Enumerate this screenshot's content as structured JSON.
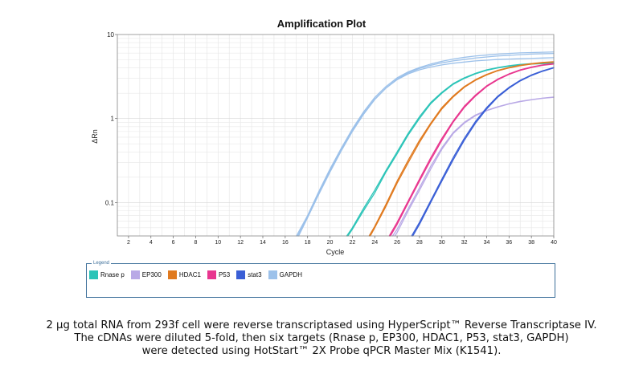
{
  "chart_data": {
    "type": "line",
    "title": "Amplification Plot",
    "xlabel": "Cycle",
    "ylabel": "ΔRn",
    "y_scale": "log",
    "xlim": [
      1,
      40
    ],
    "ylim": [
      0.04,
      10
    ],
    "x_ticks": [
      2,
      4,
      6,
      8,
      10,
      12,
      14,
      16,
      18,
      20,
      22,
      24,
      26,
      28,
      30,
      32,
      34,
      36,
      38,
      40
    ],
    "y_ticks": [
      {
        "value": 0.1,
        "label": "0.1"
      },
      {
        "value": 1,
        "label": "1"
      },
      {
        "value": 10,
        "label": "10"
      }
    ],
    "grid": true,
    "legend_caption": "Legend",
    "legend_position": "bottom",
    "series": [
      {
        "name": "Rnase p",
        "color": "#2cc4b8",
        "curves": [
          {
            "x": [
              21.6,
              22,
              23,
              24,
              25,
              26,
              27,
              28,
              29,
              30,
              31,
              32,
              33,
              34,
              35,
              36,
              37,
              38,
              39,
              40
            ],
            "y": [
              0.04,
              0.048,
              0.08,
              0.13,
              0.23,
              0.38,
              0.64,
              1.0,
              1.5,
              2.0,
              2.55,
              3.0,
              3.4,
              3.75,
              4.0,
              4.2,
              4.35,
              4.45,
              4.5,
              4.55
            ]
          },
          {
            "x": [
              21.5,
              22,
              23,
              24,
              25,
              26,
              27,
              28,
              29,
              30,
              31,
              32,
              33,
              34,
              35,
              36,
              37,
              38,
              39,
              40
            ],
            "y": [
              0.04,
              0.05,
              0.085,
              0.14,
              0.24,
              0.4,
              0.67,
              1.05,
              1.55,
              2.05,
              2.6,
              3.05,
              3.45,
              3.8,
              4.05,
              4.25,
              4.4,
              4.5,
              4.55,
              4.6
            ]
          }
        ]
      },
      {
        "name": "EP300",
        "color": "#b9a9e6",
        "curves": [
          {
            "x": [
              25.6,
              26,
              27,
              28,
              29,
              30,
              31,
              32,
              33,
              34,
              35,
              36,
              37,
              38,
              39,
              40
            ],
            "y": [
              0.04,
              0.048,
              0.085,
              0.15,
              0.27,
              0.45,
              0.68,
              0.9,
              1.1,
              1.25,
              1.38,
              1.5,
              1.6,
              1.68,
              1.75,
              1.8
            ]
          },
          {
            "x": [
              25.8,
              26,
              27,
              28,
              29,
              30,
              31,
              32,
              33,
              34,
              35,
              36,
              37,
              38,
              39,
              40
            ],
            "y": [
              0.04,
              0.044,
              0.08,
              0.14,
              0.25,
              0.43,
              0.66,
              0.88,
              1.08,
              1.24,
              1.37,
              1.49,
              1.59,
              1.67,
              1.74,
              1.79
            ]
          }
        ]
      },
      {
        "name": "HDAC1",
        "color": "#e07a1f",
        "curves": [
          {
            "x": [
              23.6,
              24,
              25,
              26,
              27,
              28,
              29,
              30,
              31,
              32,
              33,
              34,
              35,
              36,
              37,
              38,
              39,
              40
            ],
            "y": [
              0.04,
              0.05,
              0.09,
              0.17,
              0.3,
              0.52,
              0.85,
              1.3,
              1.8,
              2.35,
              2.85,
              3.3,
              3.7,
              4.0,
              4.25,
              4.45,
              4.6,
              4.7
            ]
          },
          {
            "x": [
              23.5,
              24,
              25,
              26,
              27,
              28,
              29,
              30,
              31,
              32,
              33,
              34,
              35,
              36,
              37,
              38,
              39,
              40
            ],
            "y": [
              0.04,
              0.052,
              0.095,
              0.18,
              0.32,
              0.55,
              0.88,
              1.35,
              1.85,
              2.4,
              2.9,
              3.35,
              3.75,
              4.05,
              4.3,
              4.5,
              4.65,
              4.75
            ]
          }
        ]
      },
      {
        "name": "P53",
        "color": "#e8368f",
        "curves": [
          {
            "x": [
              25.4,
              26,
              27,
              28,
              29,
              30,
              31,
              32,
              33,
              34,
              35,
              36,
              37,
              38,
              39,
              40
            ],
            "y": [
              0.04,
              0.055,
              0.1,
              0.18,
              0.32,
              0.55,
              0.9,
              1.35,
              1.85,
              2.4,
              2.9,
              3.35,
              3.75,
              4.05,
              4.3,
              4.45
            ]
          },
          {
            "x": [
              25.3,
              26,
              27,
              28,
              29,
              30,
              31,
              32,
              33,
              34,
              35,
              36,
              37,
              38,
              39,
              40
            ],
            "y": [
              0.04,
              0.058,
              0.105,
              0.19,
              0.34,
              0.58,
              0.93,
              1.4,
              1.9,
              2.45,
              2.95,
              3.4,
              3.8,
              4.1,
              4.35,
              4.5
            ]
          }
        ]
      },
      {
        "name": "stat3",
        "color": "#3a5fd6",
        "curves": [
          {
            "x": [
              27.4,
              28,
              29,
              30,
              31,
              32,
              33,
              34,
              35,
              36,
              37,
              38,
              39,
              40
            ],
            "y": [
              0.04,
              0.055,
              0.1,
              0.18,
              0.32,
              0.55,
              0.88,
              1.3,
              1.8,
              2.3,
              2.8,
              3.25,
              3.65,
              4.0
            ]
          },
          {
            "x": [
              27.3,
              28,
              29,
              30,
              31,
              32,
              33,
              34,
              35,
              36,
              37,
              38,
              39,
              40
            ],
            "y": [
              0.04,
              0.058,
              0.105,
              0.19,
              0.34,
              0.58,
              0.92,
              1.35,
              1.85,
              2.35,
              2.85,
              3.3,
              3.7,
              4.05
            ]
          }
        ]
      },
      {
        "name": "GAPDH",
        "color": "#9cc1ea",
        "curves": [
          {
            "x": [
              17.1,
              18,
              19,
              20,
              21,
              22,
              23,
              24,
              25,
              26,
              27,
              28,
              29,
              30,
              31,
              32,
              33,
              34,
              35,
              36,
              37,
              38,
              39,
              40
            ],
            "y": [
              0.04,
              0.068,
              0.13,
              0.24,
              0.42,
              0.72,
              1.15,
              1.7,
              2.3,
              2.9,
              3.4,
              3.8,
              4.1,
              4.35,
              4.55,
              4.7,
              4.85,
              4.95,
              5.05,
              5.1,
              5.15,
              5.2,
              5.25,
              5.3
            ]
          },
          {
            "x": [
              17.2,
              18,
              19,
              20,
              21,
              22,
              23,
              24,
              25,
              26,
              27,
              28,
              29,
              30,
              31,
              32,
              33,
              34,
              35,
              36,
              37,
              38,
              39,
              40
            ],
            "y": [
              0.04,
              0.066,
              0.125,
              0.23,
              0.41,
              0.7,
              1.12,
              1.68,
              2.3,
              2.95,
              3.5,
              3.95,
              4.3,
              4.6,
              4.85,
              5.05,
              5.25,
              5.4,
              5.55,
              5.65,
              5.75,
              5.85,
              5.9,
              5.95
            ]
          },
          {
            "x": [
              17.0,
              18,
              19,
              20,
              21,
              22,
              23,
              24,
              25,
              26,
              27,
              28,
              29,
              30,
              31,
              32,
              33,
              34,
              35,
              36,
              37,
              38,
              39,
              40
            ],
            "y": [
              0.04,
              0.07,
              0.135,
              0.25,
              0.44,
              0.75,
              1.2,
              1.78,
              2.4,
              3.05,
              3.6,
              4.05,
              4.45,
              4.8,
              5.1,
              5.35,
              5.55,
              5.7,
              5.85,
              5.95,
              6.05,
              6.1,
              6.15,
              6.2
            ]
          }
        ]
      }
    ]
  },
  "caption": [
    "2 µg total RNA from 293f cell were reverse transcriptased using HyperScript™ Reverse Transcriptase IV.",
    "The cDNAs were diluted 5-fold, then six targets (Rnase p, EP300, HDAC1, P53, stat3, GAPDH)",
    "were detected using HotStart™ 2X Probe qPCR Master Mix (K1541)."
  ]
}
